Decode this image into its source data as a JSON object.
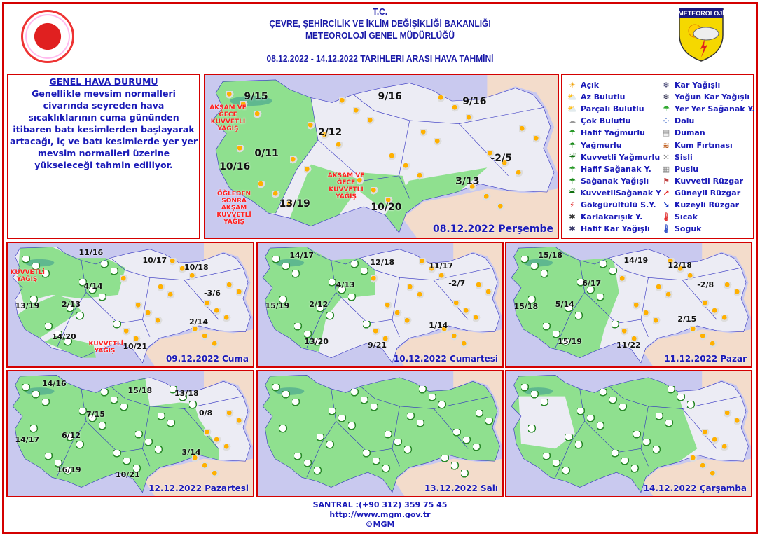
{
  "header": {
    "line1": "T.C.",
    "line2": "ÇEVRE, ŞEHİRCİLİK VE İKLİM DEĞİŞİKLİĞİ BAKANLIĞI",
    "line3": "METEOROLOJİ GENEL MÜDÜRLÜĞÜ",
    "date_range": "08.12.2022  -  14.12.2022   TARIHLERI  ARASI  HAVA  TAHMİNİ",
    "logo_text": "METEOROLOJİ"
  },
  "genel": {
    "title": "GENEL HAVA DURUMU",
    "text": "Genellikle mevsim normalleri civarında seyreden hava sıcaklıklarının cuma gününden itibaren batı kesimlerden başlayarak artacağı, iç ve batı kesimlerde yer yer mevsim normalleri üzerine yükseleceği tahmin ediliyor."
  },
  "colors": {
    "border": "#d40000",
    "text": "#1a1ab8",
    "sea": "#c9c9ef",
    "land": "#ececf4",
    "rain_area": "#8fe08f",
    "warning": "#ff2020"
  },
  "legend": {
    "left": [
      {
        "icon": "sun-icon",
        "label": "Açık"
      },
      {
        "icon": "sun-small-cloud-icon",
        "label": "Az Bulutlu"
      },
      {
        "icon": "partly-cloudy-icon",
        "label": "Parçalı Bulutlu"
      },
      {
        "icon": "cloudy-icon",
        "label": "Çok Bulutlu"
      },
      {
        "icon": "light-rain-icon",
        "label": "Hafif Yağmurlu"
      },
      {
        "icon": "rain-icon",
        "label": "Yağmurlu"
      },
      {
        "icon": "heavy-rain-icon",
        "label": "Kuvvetli Yağmurlu"
      },
      {
        "icon": "light-shower-icon",
        "label": "Hafif Sağanak Y."
      },
      {
        "icon": "shower-icon",
        "label": "Sağanak Yağışlı"
      },
      {
        "icon": "heavy-shower-icon",
        "label": "KuvvetliSağanak Y"
      },
      {
        "icon": "thunderstorm-icon",
        "label": "Gökgürültülü S.Y."
      },
      {
        "icon": "sleet-icon",
        "label": "Karlakarışık Y."
      },
      {
        "icon": "light-snow-icon",
        "label": "Hafif Kar Yağışlı"
      }
    ],
    "right": [
      {
        "icon": "snow-icon",
        "label": "Kar Yağışlı"
      },
      {
        "icon": "heavy-snow-icon",
        "label": "Yoğun Kar Yağışlı"
      },
      {
        "icon": "scattered-shower-icon",
        "label": "Yer Yer Sağanak Y."
      },
      {
        "icon": "hail-icon",
        "label": "Dolu"
      },
      {
        "icon": "smoke-icon",
        "label": "Duman"
      },
      {
        "icon": "sandstorm-icon",
        "label": "Kum Fırtınası"
      },
      {
        "icon": "fog-icon",
        "label": "Sisli"
      },
      {
        "icon": "haze-icon",
        "label": "Puslu"
      },
      {
        "icon": "strong-wind-icon",
        "label": "Kuvvetli Rüzgar"
      },
      {
        "icon": "south-wind-arrow-icon",
        "label": "Güneyli Rüzgar"
      },
      {
        "icon": "north-wind-arrow-icon",
        "label": "Kuzeyli Rüzgar"
      },
      {
        "icon": "hot-thermometer-icon",
        "label": "Sıcak"
      },
      {
        "icon": "cold-thermometer-icon",
        "label": "Soguk"
      }
    ]
  },
  "maps": [
    {
      "date": "08.12.2022 Perşembe",
      "temps": [
        "9/15",
        "9/16",
        "9/16",
        "2/12",
        "-2/5",
        "10/16",
        "0/11",
        "3/13",
        "13/19",
        "10/20"
      ],
      "warnings": [
        "AKŞAM VE GECE KUVVETLİ YAĞIŞ",
        "ÖĞLEDEN SONRA AKŞAM KUVVETLİ YAĞIŞ",
        "AKŞAM VE GECE KUVVETLİ YAĞIŞ"
      ]
    },
    {
      "date": "09.12.2022 Cuma",
      "temps": [
        "11/16",
        "10/17",
        "10/18",
        "4/14",
        "-3/6",
        "13/19",
        "2/13",
        "2/14",
        "14/20",
        "10/21"
      ],
      "warnings": [
        "KUVVETLİ YAĞIŞ",
        "KUVVETLİ YAĞIŞ"
      ]
    },
    {
      "date": "10.12.2022 Cumartesi",
      "temps": [
        "14/17",
        "12/18",
        "11/17",
        "4/13",
        "-2/7",
        "15/19",
        "2/12",
        "1/14",
        "13/20",
        "9/21"
      ]
    },
    {
      "date": "11.12.2022 Pazar",
      "temps": [
        "15/18",
        "14/19",
        "12/18",
        "6/17",
        "-2/8",
        "15/18",
        "5/14",
        "2/15",
        "15/19",
        "11/22"
      ]
    },
    {
      "date": "12.12.2022 Pazartesi",
      "temps": [
        "14/16",
        "15/18",
        "13/18",
        "7/15",
        "0/8",
        "14/17",
        "6/12",
        "3/14",
        "16/19",
        "10/21"
      ]
    },
    {
      "date": "13.12.2022 Salı",
      "temps": []
    },
    {
      "date": "14.12.2022 Çarşamba",
      "temps": []
    }
  ],
  "footer": {
    "phone": "SANTRAL :(+90 312) 359 75 45",
    "url": "http://www.mgm.gov.tr",
    "copyright": "©MGM"
  }
}
